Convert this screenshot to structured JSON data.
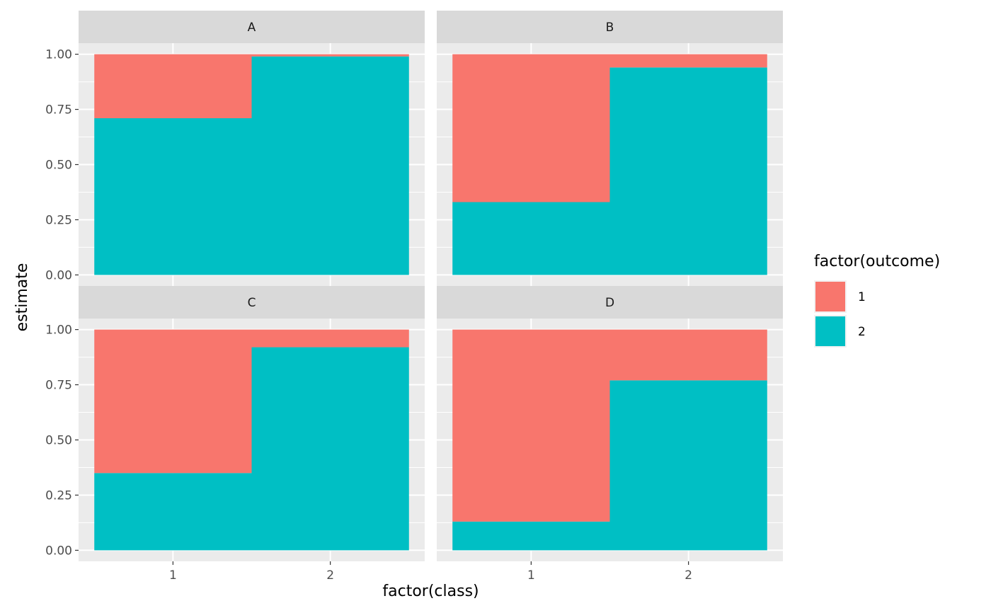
{
  "chart_data": {
    "type": "bar",
    "stacked": true,
    "facet_by": "panel",
    "xlabel": "factor(class)",
    "ylabel": "estimate",
    "ylim": [
      0,
      1
    ],
    "y_ticks": [
      "0.00",
      "0.25",
      "0.50",
      "0.75",
      "1.00"
    ],
    "categories": [
      "1",
      "2"
    ],
    "legend": {
      "title": "factor(outcome)",
      "position": "right",
      "entries": [
        {
          "label": "1",
          "color": "#F8766D"
        },
        {
          "label": "2",
          "color": "#00BFC4"
        }
      ]
    },
    "panels": [
      {
        "label": "A",
        "series": [
          {
            "outcome": "1",
            "values": [
              0.29,
              0.01
            ]
          },
          {
            "outcome": "2",
            "values": [
              0.71,
              0.99
            ]
          }
        ]
      },
      {
        "label": "B",
        "series": [
          {
            "outcome": "1",
            "values": [
              0.67,
              0.06
            ]
          },
          {
            "outcome": "2",
            "values": [
              0.33,
              0.94
            ]
          }
        ]
      },
      {
        "label": "C",
        "series": [
          {
            "outcome": "1",
            "values": [
              0.65,
              0.08
            ]
          },
          {
            "outcome": "2",
            "values": [
              0.35,
              0.92
            ]
          }
        ]
      },
      {
        "label": "D",
        "series": [
          {
            "outcome": "1",
            "values": [
              0.87,
              0.23
            ]
          },
          {
            "outcome": "2",
            "values": [
              0.13,
              0.77
            ]
          }
        ]
      }
    ],
    "colors": {
      "panel_bg": "#EBEBEB",
      "strip_bg": "#D9D9D9",
      "grid": "#FFFFFF"
    }
  }
}
